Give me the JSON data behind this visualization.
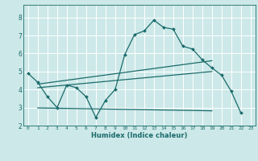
{
  "xlabel": "Humidex (Indice chaleur)",
  "ylabel": "",
  "xlim": [
    -0.5,
    23.5
  ],
  "ylim": [
    2,
    8.7
  ],
  "xticks": [
    0,
    1,
    2,
    3,
    4,
    5,
    6,
    7,
    8,
    9,
    10,
    11,
    12,
    13,
    14,
    15,
    16,
    17,
    18,
    19,
    20,
    21,
    22,
    23
  ],
  "yticks": [
    2,
    3,
    4,
    5,
    6,
    7,
    8
  ],
  "bg_color": "#cde8e8",
  "grid_color": "#ffffff",
  "line_color": "#1a6b6b",
  "main_series_x": [
    0,
    1,
    2,
    3,
    4,
    5,
    6,
    7,
    8,
    9,
    10,
    11,
    12,
    13,
    14,
    15,
    16,
    17,
    18,
    19,
    20,
    21,
    22
  ],
  "main_series_y": [
    4.9,
    4.4,
    3.6,
    3.0,
    4.25,
    4.1,
    3.6,
    2.45,
    3.4,
    4.0,
    5.95,
    7.05,
    7.25,
    7.85,
    7.45,
    7.35,
    6.4,
    6.25,
    5.65,
    5.2,
    4.8,
    3.9,
    2.7
  ],
  "trend1_x": [
    1,
    19
  ],
  "trend1_y": [
    4.3,
    5.6
  ],
  "trend2_x": [
    1,
    19
  ],
  "trend2_y": [
    4.1,
    5.0
  ],
  "trend3_x": [
    1,
    19
  ],
  "trend3_y": [
    2.98,
    2.82
  ]
}
